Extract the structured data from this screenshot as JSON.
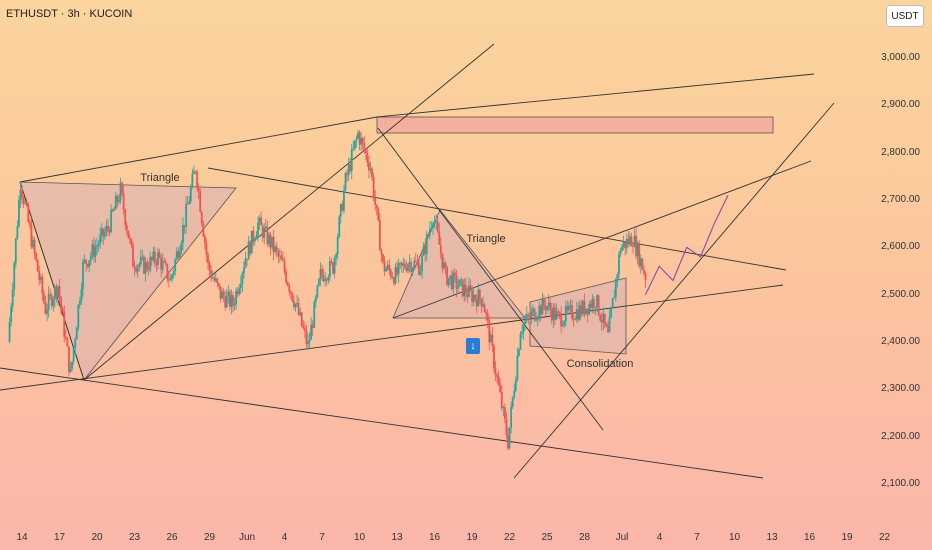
{
  "header": {
    "symbol": "ETHUSDT · 3h · KUCOIN"
  },
  "currency_button": "USDT",
  "marker_icon": "arrow-down-icon",
  "chart_data": {
    "type": "candlestick",
    "title": "ETHUSDT · 3h · KUCOIN",
    "y_ticks": [
      "3,000.00",
      "2,900.00",
      "2,800.00",
      "2,700.00",
      "2,600.00",
      "2,500.00",
      "2,400.00",
      "2,300.00",
      "2,200.00",
      "2,100.00"
    ],
    "x_ticks": [
      "14",
      "17",
      "20",
      "23",
      "26",
      "29",
      "Jun",
      "4",
      "7",
      "10",
      "13",
      "16",
      "19",
      "22",
      "25",
      "28",
      "Jul",
      "4",
      "7",
      "10",
      "13",
      "16",
      "19",
      "22"
    ],
    "ylim": [
      2050,
      3060
    ],
    "annotations": [
      "Triangle",
      "Triangle",
      "Consolidation"
    ],
    "price_path": [
      {
        "x": "14",
        "y": 2400
      },
      {
        "x": "15",
        "y": 2740
      },
      {
        "x": "16",
        "y": 2600
      },
      {
        "x": "17",
        "y": 2470
      },
      {
        "x": "18",
        "y": 2520
      },
      {
        "x": "19",
        "y": 2330
      },
      {
        "x": "20",
        "y": 2560
      },
      {
        "x": "21",
        "y": 2600
      },
      {
        "x": "22",
        "y": 2640
      },
      {
        "x": "23",
        "y": 2720
      },
      {
        "x": "24",
        "y": 2570
      },
      {
        "x": "25",
        "y": 2560
      },
      {
        "x": "26",
        "y": 2580
      },
      {
        "x": "27",
        "y": 2530
      },
      {
        "x": "28",
        "y": 2640
      },
      {
        "x": "29",
        "y": 2770
      },
      {
        "x": "30",
        "y": 2560
      },
      {
        "x": "31",
        "y": 2500
      },
      {
        "x": "Jun",
        "y": 2480
      },
      {
        "x": "2",
        "y": 2580
      },
      {
        "x": "3",
        "y": 2650
      },
      {
        "x": "4",
        "y": 2610
      },
      {
        "x": "5",
        "y": 2560
      },
      {
        "x": "6",
        "y": 2480
      },
      {
        "x": "7",
        "y": 2390
      },
      {
        "x": "8",
        "y": 2540
      },
      {
        "x": "9",
        "y": 2560
      },
      {
        "x": "10",
        "y": 2740
      },
      {
        "x": "11",
        "y": 2840
      },
      {
        "x": "12",
        "y": 2770
      },
      {
        "x": "13",
        "y": 2560
      },
      {
        "x": "14",
        "y": 2540
      },
      {
        "x": "15",
        "y": 2570
      },
      {
        "x": "16",
        "y": 2560
      },
      {
        "x": "17",
        "y": 2670
      },
      {
        "x": "18",
        "y": 2540
      },
      {
        "x": "19",
        "y": 2520
      },
      {
        "x": "20",
        "y": 2500
      },
      {
        "x": "21",
        "y": 2490
      },
      {
        "x": "22",
        "y": 2340
      },
      {
        "x": "23",
        "y": 2190
      },
      {
        "x": "24",
        "y": 2430
      },
      {
        "x": "25",
        "y": 2460
      },
      {
        "x": "26",
        "y": 2480
      },
      {
        "x": "27",
        "y": 2450
      },
      {
        "x": "28",
        "y": 2460
      },
      {
        "x": "29",
        "y": 2470
      },
      {
        "x": "30",
        "y": 2490
      },
      {
        "x": "Jul",
        "y": 2410
      },
      {
        "x": "2",
        "y": 2600
      },
      {
        "x": "3",
        "y": 2620
      },
      {
        "x": "4",
        "y": 2540
      }
    ],
    "projection": [
      {
        "x": "4",
        "y": 2500
      },
      {
        "x": "5",
        "y": 2560
      },
      {
        "x": "6",
        "y": 2530
      },
      {
        "x": "7",
        "y": 2600
      },
      {
        "x": "8",
        "y": 2580
      },
      {
        "x": "9",
        "y": 2650
      },
      {
        "x": "10",
        "y": 2710
      }
    ],
    "resistance_zone": [
      2850,
      2875
    ]
  },
  "colors": {
    "up_candle": "#26a69a",
    "down_candle": "#ef5350",
    "line": "#444444",
    "projection": "#8e44ad",
    "zone": "#f4a8a0"
  }
}
